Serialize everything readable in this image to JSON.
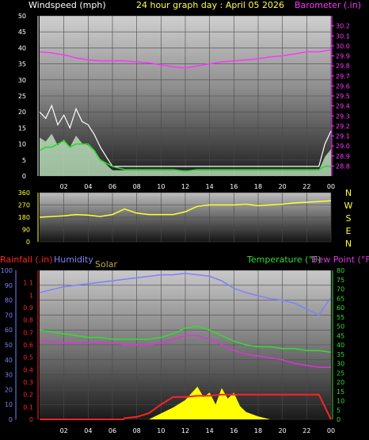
{
  "header": {
    "windspeed_label": "Windspeed (mph)",
    "title": "24 hour graph day : April 05 2026",
    "barometer_label": "Barometer (.in)"
  },
  "bottom_header": {
    "rainfall_label": "Rainfall (.in)",
    "humidity_label": "Humidity",
    "solar_label": "Solar",
    "temperature_label": "Temperature (°F)",
    "dewpoint_label": "Dew Point (°F)"
  },
  "colors": {
    "windspeed": "#ffffff",
    "windgust_fill": "#c8f0c8",
    "wind_avg": "#22dd22",
    "barometer": "#ff33ff",
    "direction": "#ffff33",
    "rainfall": "#ff2222",
    "humidity": "#7f7fff",
    "solar": "#ffff00",
    "temperature": "#33dd33",
    "dewpoint": "#dd33dd",
    "axis_text_left_top": "#ffffff",
    "axis_text_right_top": "#ff33ff",
    "axis_text_right_bottom": "#33dd33"
  },
  "chart_data": [
    {
      "id": "wind_baro",
      "type": "line",
      "title": "24 hour graph day : April 05 2026",
      "x_ticks": [
        "02",
        "04",
        "06",
        "08",
        "10",
        "12",
        "14",
        "16",
        "18",
        "20",
        "22",
        "00"
      ],
      "xlim_hours": [
        0,
        24
      ],
      "ylabel_left": "Windspeed (mph)",
      "ylim_left": [
        0,
        50
      ],
      "yticks_left": [
        0,
        5,
        10,
        15,
        20,
        25,
        30,
        35,
        40,
        45,
        50
      ],
      "ylabel_right": "Barometer (.in)",
      "ylim_right": [
        28.7,
        30.3
      ],
      "yticks_right": [
        28.8,
        28.9,
        29.0,
        29.1,
        29.2,
        29.3,
        29.4,
        29.5,
        29.6,
        29.7,
        29.8,
        29.9,
        30.0,
        30.1,
        30.2
      ],
      "series": [
        {
          "name": "Windspeed (mph)",
          "axis": "left",
          "x": [
            0,
            0.5,
            1,
            1.5,
            2,
            2.5,
            3,
            3.5,
            4,
            4.5,
            5,
            5.5,
            6,
            7,
            8,
            9,
            10,
            11,
            12,
            13,
            14,
            15,
            16,
            17,
            18,
            19,
            20,
            21,
            22,
            23,
            23.5,
            24
          ],
          "y": [
            20,
            18,
            22,
            16,
            19,
            15,
            21,
            17,
            16,
            13,
            9,
            6,
            3,
            3,
            3,
            3,
            3,
            3,
            3,
            3,
            3,
            3,
            3,
            3,
            3,
            3,
            3,
            3,
            3,
            3,
            10,
            14
          ]
        },
        {
          "name": "Wind average",
          "axis": "left",
          "x": [
            0,
            0.5,
            1,
            1.5,
            2,
            2.5,
            3,
            3.5,
            4,
            4.5,
            5,
            5.5,
            6,
            7,
            8,
            9,
            10,
            11,
            12,
            13,
            14,
            15,
            16,
            17,
            18,
            19,
            20,
            21,
            22,
            23,
            23.5,
            24
          ],
          "y": [
            8,
            9,
            9,
            10,
            11,
            9,
            10,
            10,
            10,
            8,
            5,
            4,
            3,
            2,
            2,
            2,
            2,
            2,
            1.5,
            2,
            2,
            2,
            2,
            2,
            2,
            2,
            2,
            2,
            2,
            2,
            3,
            3
          ]
        },
        {
          "name": "Barometer (.in)",
          "axis": "right",
          "x": [
            0,
            1,
            2,
            3,
            4,
            5,
            6,
            7,
            8,
            9,
            10,
            11,
            12,
            13,
            14,
            15,
            16,
            17,
            18,
            19,
            20,
            21,
            22,
            23,
            24
          ],
          "y": [
            29.94,
            29.93,
            29.91,
            29.88,
            29.86,
            29.85,
            29.85,
            29.85,
            29.84,
            29.83,
            29.81,
            29.79,
            29.78,
            29.8,
            29.82,
            29.84,
            29.85,
            29.86,
            29.87,
            29.89,
            29.9,
            29.92,
            29.94,
            29.94,
            29.96
          ]
        }
      ]
    },
    {
      "id": "wind_direction",
      "type": "line",
      "x_ticks": [],
      "xlim_hours": [
        0,
        24
      ],
      "ylim": [
        0,
        360
      ],
      "yticks": [
        0,
        90,
        180,
        270,
        360
      ],
      "compass_labels": [
        "N",
        "W",
        "S",
        "E",
        "N"
      ],
      "series": [
        {
          "name": "Wind direction",
          "x": [
            0,
            1,
            2,
            3,
            4,
            5,
            6,
            7,
            8,
            9,
            10,
            11,
            12,
            13,
            14,
            15,
            16,
            17,
            18,
            19,
            20,
            21,
            22,
            23,
            24
          ],
          "y": [
            180,
            185,
            190,
            200,
            195,
            185,
            200,
            240,
            210,
            200,
            200,
            200,
            220,
            260,
            270,
            270,
            270,
            275,
            265,
            270,
            275,
            285,
            290,
            295,
            300
          ]
        }
      ]
    },
    {
      "id": "temp_hum_rain",
      "type": "line",
      "x_ticks": [
        "02",
        "04",
        "06",
        "08",
        "10",
        "12",
        "14",
        "16",
        "18",
        "20",
        "22",
        "00"
      ],
      "xlim_hours": [
        0,
        24
      ],
      "ylabel_left": "Humidity",
      "ylim_humidity": [
        0,
        100
      ],
      "yticks_humidity": [
        0,
        10,
        20,
        30,
        40,
        50,
        60,
        70,
        80,
        90,
        100
      ],
      "ylabel_rain": "Rainfall (.in)",
      "ylim_rain": [
        0,
        1.2
      ],
      "yticks_rain": [
        0,
        0.1,
        0.2,
        0.3,
        0.4,
        0.5,
        0.6,
        0.7,
        0.8,
        0.9,
        1,
        1.1
      ],
      "ylabel_right": "Temperature (°F)",
      "ylim_right": [
        0,
        80
      ],
      "yticks_right": [
        0,
        5,
        10,
        15,
        20,
        25,
        30,
        35,
        40,
        45,
        50,
        55,
        60,
        65,
        70,
        75,
        80
      ],
      "series": [
        {
          "name": "Humidity",
          "axis": "humidity",
          "x": [
            0,
            1,
            2,
            3,
            4,
            5,
            6,
            7,
            8,
            9,
            10,
            11,
            12,
            13,
            14,
            15,
            16,
            17,
            18,
            19,
            20,
            21,
            22,
            23,
            24
          ],
          "y": [
            85,
            87,
            89,
            90,
            91,
            92,
            93,
            94,
            95,
            96,
            97,
            97,
            98,
            97,
            96,
            93,
            88,
            85,
            83,
            81,
            80,
            78,
            74,
            70,
            82
          ]
        },
        {
          "name": "Temperature (°F)",
          "axis": "right",
          "x": [
            0,
            1,
            2,
            3,
            4,
            5,
            6,
            7,
            8,
            9,
            10,
            11,
            12,
            13,
            14,
            15,
            16,
            17,
            18,
            19,
            20,
            21,
            22,
            23,
            24
          ],
          "y": [
            48,
            47,
            46,
            45,
            44,
            44,
            43,
            43,
            43,
            43,
            44,
            46,
            49,
            50,
            48,
            45,
            42,
            40,
            39,
            39,
            38,
            38,
            37,
            37,
            36
          ]
        },
        {
          "name": "Dew Point (°F)",
          "axis": "right",
          "x": [
            0,
            1,
            2,
            3,
            4,
            5,
            6,
            7,
            8,
            9,
            10,
            11,
            12,
            13,
            14,
            15,
            16,
            17,
            18,
            19,
            20,
            21,
            22,
            23,
            24
          ],
          "y": [
            42,
            42,
            41,
            41,
            41,
            41,
            41,
            40,
            40,
            40,
            41,
            43,
            45,
            45,
            43,
            40,
            37,
            35,
            34,
            33,
            32,
            30,
            29,
            28,
            28
          ]
        },
        {
          "name": "Rainfall (.in)",
          "axis": "rain",
          "x": [
            0,
            6.9,
            7,
            8,
            9,
            10,
            11,
            12,
            13,
            14,
            15,
            16,
            17,
            18,
            19,
            20,
            21,
            22,
            23,
            24
          ],
          "y": [
            0,
            0,
            0.01,
            0.02,
            0.05,
            0.12,
            0.18,
            0.18,
            0.19,
            0.19,
            0.2,
            0.2,
            0.2,
            0.2,
            0.2,
            0.2,
            0.2,
            0.2,
            0.2,
            0
          ]
        },
        {
          "name": "Solar",
          "x": [
            9,
            10,
            11,
            12,
            13,
            13.5,
            14,
            14.5,
            15,
            15.5,
            16,
            16.5,
            17,
            18,
            19
          ],
          "y": [
            0,
            4,
            8,
            13,
            22,
            15,
            18,
            10,
            21,
            14,
            18,
            9,
            5,
            2,
            0
          ]
        }
      ]
    }
  ]
}
